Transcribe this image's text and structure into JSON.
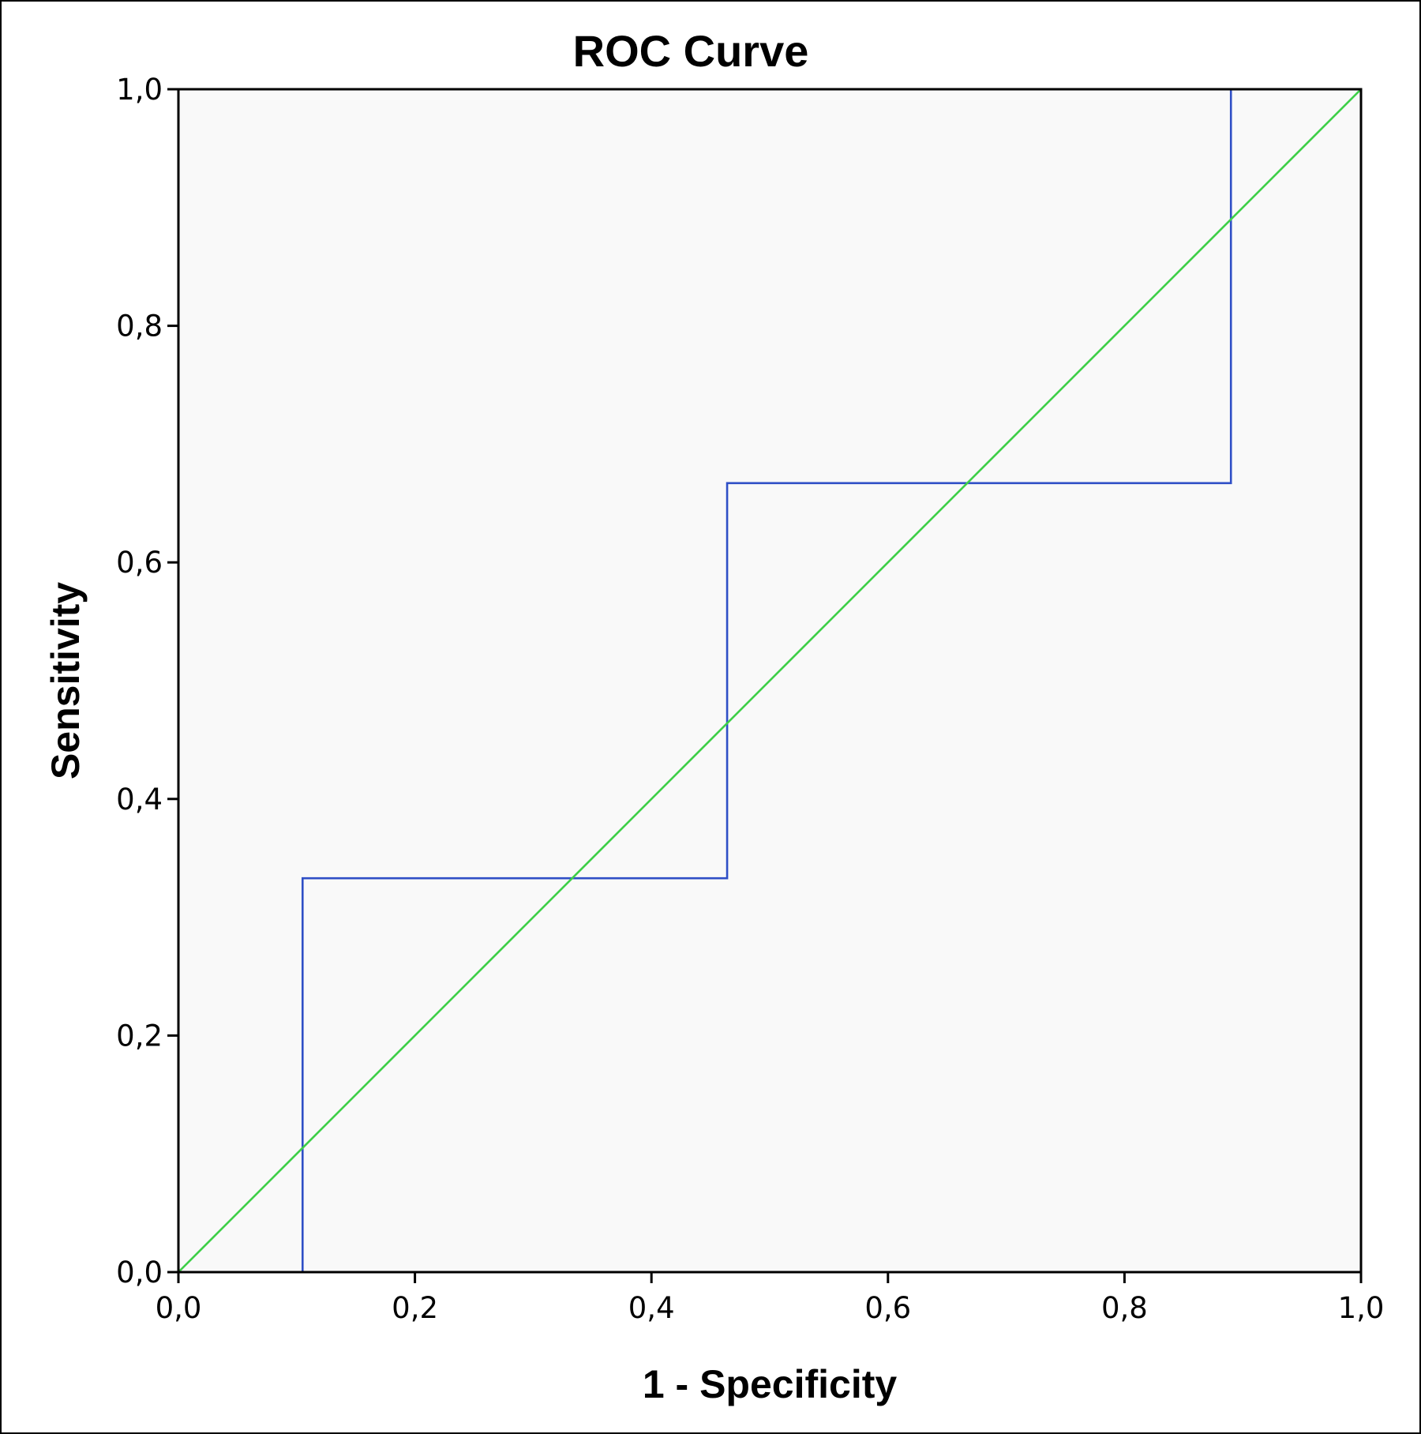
{
  "chart_data": {
    "type": "line",
    "title": "ROC Curve",
    "xlabel": "1 - Specificity",
    "ylabel": "Sensitivity",
    "xlim": [
      0,
      1
    ],
    "ylim": [
      0,
      1
    ],
    "x_ticks": [
      "0,0",
      "0,2",
      "0,4",
      "0,6",
      "0,8",
      "1,0"
    ],
    "y_ticks": [
      "0,0",
      "0,2",
      "0,4",
      "0,6",
      "0,8",
      "1,0"
    ],
    "tick_values": [
      0,
      0.2,
      0.4,
      0.6,
      0.8,
      1.0
    ],
    "grid": false,
    "plot_background": "#f9f9f9",
    "series": [
      {
        "color": "#2f4fc6",
        "step": true,
        "points": [
          [
            0.105,
            0.0
          ],
          [
            0.105,
            0.333
          ],
          [
            0.464,
            0.333
          ],
          [
            0.464,
            0.667
          ],
          [
            0.89,
            0.667
          ],
          [
            0.89,
            1.0
          ],
          [
            1.0,
            1.0
          ]
        ]
      },
      {
        "color": "#3ecf48",
        "step": false,
        "points": [
          [
            0.0,
            0.0
          ],
          [
            1.0,
            1.0
          ]
        ]
      }
    ]
  }
}
